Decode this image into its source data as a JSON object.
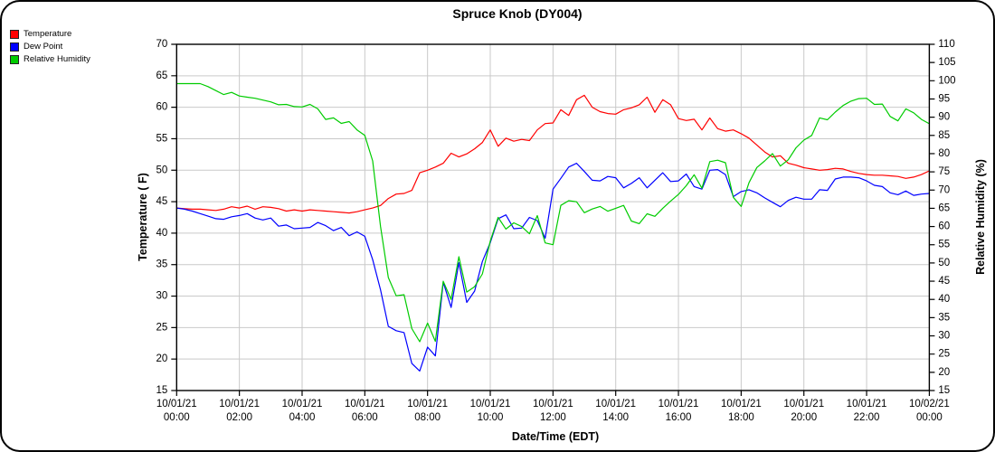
{
  "title": "Spruce Knob (DY004)",
  "chart_data": {
    "type": "line",
    "title": "Spruce Knob (DY004)",
    "xlabel": "Date/Time (EDT)",
    "ylabel_left": "Temperature ( F)",
    "ylabel_right": "Relative Humidity (%)",
    "grid": true,
    "legend_position": "top-left",
    "x_start_hours": 0,
    "x_step_hours": 0.25,
    "x_range_hours": [
      0,
      24
    ],
    "x_tick_hours": [
      0,
      2,
      4,
      6,
      8,
      10,
      12,
      14,
      16,
      18,
      20,
      22,
      24
    ],
    "x_ticks": [
      {
        "date": "10/01/21",
        "time": "00:00"
      },
      {
        "date": "10/01/21",
        "time": "02:00"
      },
      {
        "date": "10/01/21",
        "time": "04:00"
      },
      {
        "date": "10/01/21",
        "time": "06:00"
      },
      {
        "date": "10/01/21",
        "time": "08:00"
      },
      {
        "date": "10/01/21",
        "time": "10:00"
      },
      {
        "date": "10/01/21",
        "time": "12:00"
      },
      {
        "date": "10/01/21",
        "time": "14:00"
      },
      {
        "date": "10/01/21",
        "time": "16:00"
      },
      {
        "date": "10/01/21",
        "time": "18:00"
      },
      {
        "date": "10/01/21",
        "time": "20:00"
      },
      {
        "date": "10/01/21",
        "time": "22:00"
      },
      {
        "date": "10/02/21",
        "time": "00:00"
      }
    ],
    "y_left": {
      "min": 15,
      "max": 70,
      "step": 5
    },
    "y_right": {
      "min": 15,
      "max": 110,
      "step": 5
    },
    "grid_color": "#c9c9c9",
    "series": [
      {
        "name": "Temperature",
        "axis": "left",
        "unit": "F",
        "color": "#ff0000",
        "values": [
          44.0,
          43.9,
          43.8,
          43.8,
          43.7,
          43.6,
          43.8,
          44.2,
          44.0,
          44.3,
          43.8,
          44.2,
          44.1,
          43.9,
          43.5,
          43.7,
          43.5,
          43.7,
          43.6,
          43.5,
          43.4,
          43.3,
          43.2,
          43.4,
          43.7,
          44.0,
          44.4,
          45.5,
          46.2,
          46.3,
          46.8,
          49.6,
          50.0,
          50.5,
          51.1,
          52.7,
          52.1,
          52.6,
          53.4,
          54.4,
          56.4,
          53.8,
          55.1,
          54.6,
          54.9,
          54.7,
          56.4,
          57.4,
          57.5,
          59.6,
          58.7,
          61.2,
          61.9,
          60.0,
          59.3,
          59.0,
          58.9,
          59.6,
          59.9,
          60.4,
          61.6,
          59.2,
          61.2,
          60.4,
          58.2,
          57.9,
          58.1,
          56.4,
          58.3,
          56.6,
          56.2,
          56.4,
          55.8,
          55.1,
          54.0,
          52.9,
          52.1,
          52.3,
          51.1,
          50.8,
          50.4,
          50.2,
          50.0,
          50.1,
          50.3,
          50.2,
          49.8,
          49.5,
          49.3,
          49.2,
          49.2,
          49.1,
          49.0,
          48.7,
          48.9,
          49.3,
          49.9
        ]
      },
      {
        "name": "Dew Point",
        "axis": "left",
        "unit": "F",
        "color": "#0000ff",
        "values": [
          44.0,
          43.8,
          43.5,
          43.1,
          42.7,
          42.3,
          42.2,
          42.6,
          42.8,
          43.1,
          42.4,
          42.1,
          42.4,
          41.1,
          41.3,
          40.7,
          40.8,
          40.9,
          41.7,
          41.2,
          40.4,
          40.9,
          39.6,
          40.2,
          39.5,
          35.8,
          31.0,
          25.2,
          24.5,
          24.2,
          19.3,
          18.1,
          21.9,
          20.5,
          32.2,
          28.2,
          35.3,
          29.0,
          30.8,
          35.5,
          38.5,
          42.3,
          42.9,
          40.7,
          40.8,
          42.5,
          42.0,
          39.2,
          47.0,
          48.7,
          50.5,
          51.1,
          49.8,
          48.4,
          48.3,
          49.0,
          48.8,
          47.2,
          47.9,
          48.8,
          47.2,
          48.4,
          49.6,
          48.2,
          48.3,
          49.4,
          47.4,
          47.0,
          50.0,
          50.1,
          49.3,
          45.8,
          46.6,
          46.9,
          46.4,
          45.6,
          44.9,
          44.2,
          45.2,
          45.7,
          45.4,
          45.4,
          46.9,
          46.8,
          48.6,
          48.9,
          48.9,
          48.8,
          48.3,
          47.6,
          47.4,
          46.4,
          46.1,
          46.7,
          46.0,
          46.2,
          46.3
        ]
      },
      {
        "name": "Relative Humidity",
        "axis": "right",
        "unit": "%",
        "color": "#00cc00",
        "values": [
          99.2,
          99.2,
          99.2,
          99.2,
          98.4,
          97.3,
          96.2,
          96.8,
          95.8,
          95.5,
          95.2,
          94.7,
          94.2,
          93.4,
          93.5,
          92.9,
          92.8,
          93.5,
          92.3,
          89.4,
          89.8,
          88.3,
          88.8,
          86.5,
          85.0,
          78.0,
          60.0,
          46.0,
          41.0,
          41.3,
          32.0,
          28.4,
          33.5,
          28.5,
          45.0,
          40.0,
          51.7,
          42.0,
          43.5,
          47.0,
          56.0,
          62.5,
          59.3,
          61.0,
          60.0,
          58.0,
          63.0,
          55.5,
          55.0,
          65.8,
          67.1,
          66.8,
          63.8,
          64.8,
          65.5,
          64.2,
          65.0,
          65.8,
          61.5,
          60.8,
          63.5,
          62.8,
          65.0,
          67.0,
          68.8,
          71.2,
          74.2,
          70.5,
          77.8,
          78.2,
          77.5,
          68.0,
          65.5,
          72.0,
          76.2,
          78.0,
          80.0,
          76.6,
          78.3,
          81.6,
          83.7,
          85.0,
          89.8,
          89.3,
          91.4,
          93.2,
          94.4,
          95.1,
          95.2,
          93.5,
          93.6,
          90.2,
          89.0,
          92.3,
          91.2,
          89.4,
          88.2
        ]
      }
    ]
  }
}
